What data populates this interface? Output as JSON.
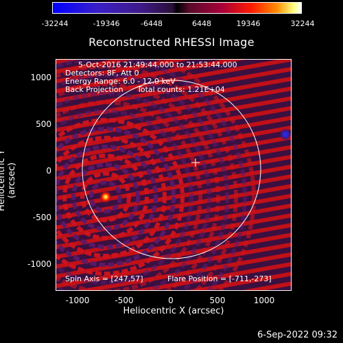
{
  "colorbar": {
    "ticks": [
      "-32244",
      "-19346",
      "-6448",
      "6448",
      "19346",
      "32244"
    ]
  },
  "title": "Reconstructed RHESSI Image",
  "info": {
    "time_range": "5-Oct-2016 21:49:44.000 to 21:53:44.000",
    "detectors": "Detectors: 8F, Att 0",
    "energy_range": "Energy Range: 6.0 - 12.0 keV",
    "method": "Back Projection",
    "total_counts": "Total counts: 1.21E+04",
    "spin_axis": "Spin Axis = [247,57]",
    "flare_position": "Flare Position = [-711,-273]"
  },
  "axes": {
    "xlabel": "Heliocentric X (arcsec)",
    "ylabel": "Heliocentric Y (arcsec)",
    "xticks": [
      "-1000",
      "-500",
      "0",
      "500",
      "1000"
    ],
    "yticks": [
      "1000",
      "500",
      "0",
      "-500",
      "-1000"
    ]
  },
  "footer": "6-Sep-2022 09:32",
  "colors": {
    "background": "#000000",
    "limb": "#ffffff"
  }
}
